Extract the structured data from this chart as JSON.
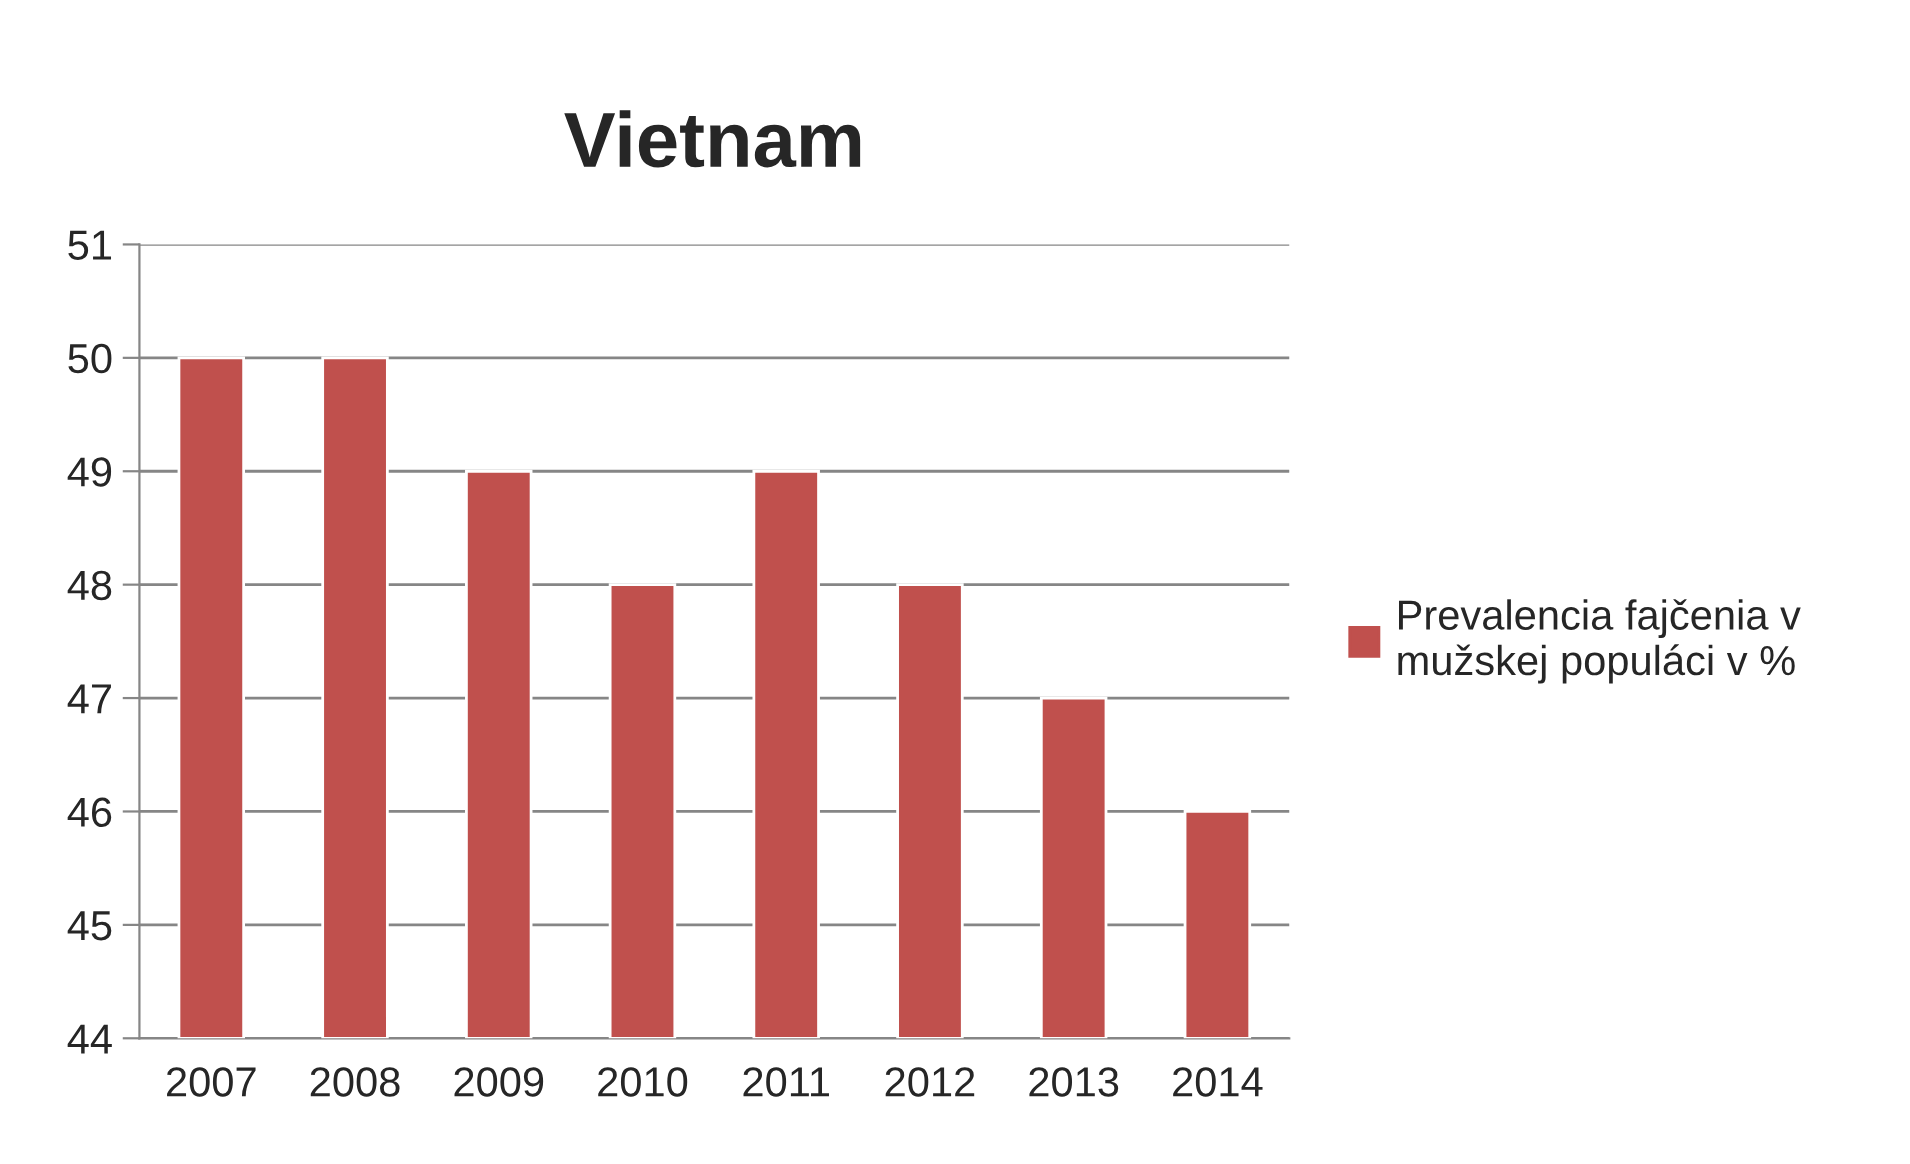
{
  "chart_data": {
    "type": "bar",
    "title": "Vietnam",
    "categories": [
      "2007",
      "2008",
      "2009",
      "2010",
      "2011",
      "2012",
      "2013",
      "2014"
    ],
    "series": [
      {
        "name": "Prevalencia fajčenia v\nmužskej populáci v %",
        "color": "#c0504d",
        "values": [
          50,
          50,
          49,
          48,
          49,
          48,
          47,
          46
        ]
      }
    ],
    "ylim": [
      44,
      51
    ],
    "yticks": [
      44,
      45,
      46,
      47,
      48,
      49,
      50,
      51
    ],
    "grid": "y",
    "legend": "right"
  }
}
